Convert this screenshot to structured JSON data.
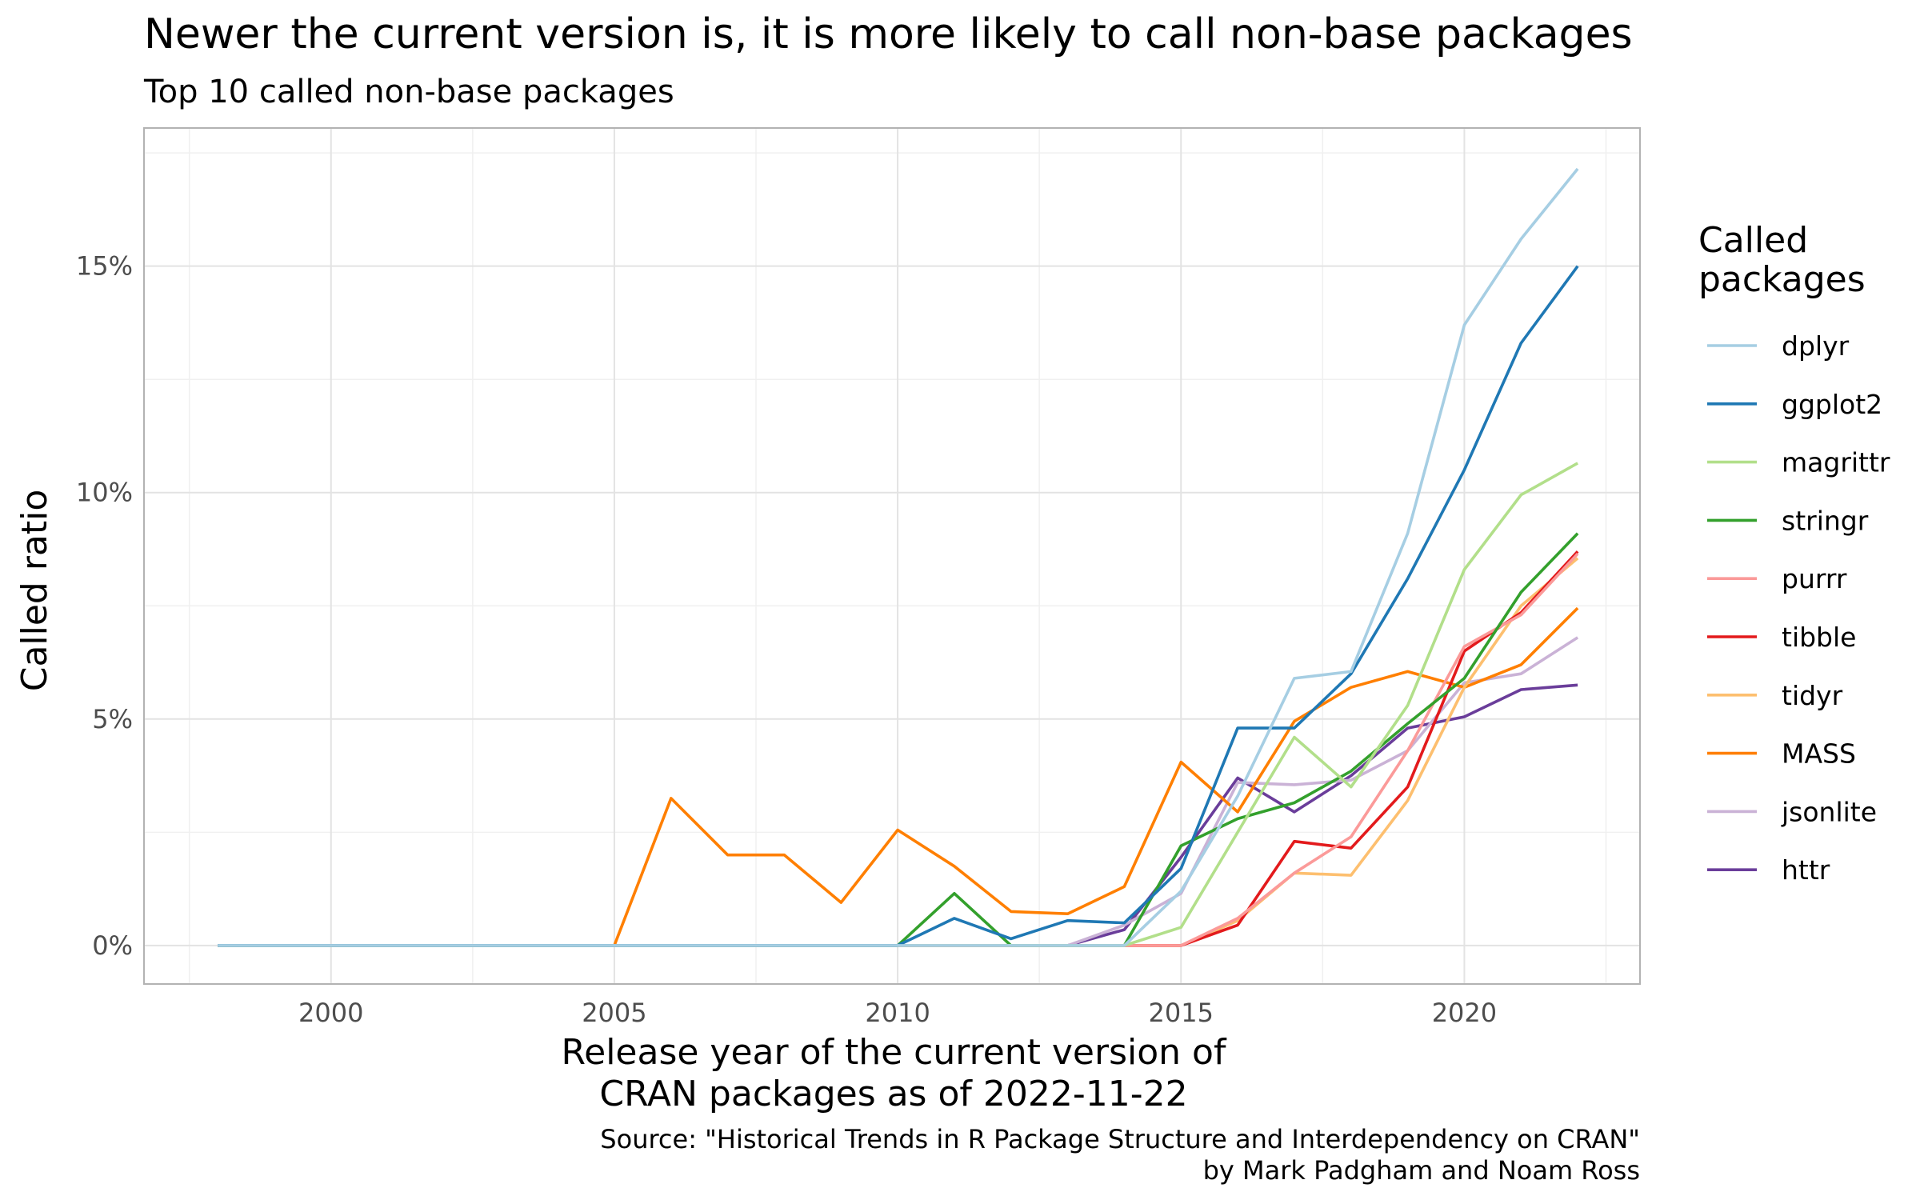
{
  "chart_data": {
    "type": "line",
    "title": "Newer the current version is, it is more likely to call non-base packages",
    "subtitle": "Top 10 called non-base packages",
    "xlabel": [
      "Release year of the current version of",
      "CRAN packages as of 2022-11-22"
    ],
    "ylabel": "Called ratio",
    "caption": [
      "Source: \"Historical Trends in R Package Structure and Interdependency on CRAN\"",
      "by Mark Padgham and Noam Ross"
    ],
    "legend_title": [
      "Called",
      "packages"
    ],
    "legend_position": "right",
    "grid": true,
    "xlim": [
      1996.7,
      2023.1
    ],
    "ylim": [
      -0.85,
      18.05
    ],
    "x_ticks": [
      2000,
      2005,
      2010,
      2015,
      2020
    ],
    "x_tick_labels": [
      "2000",
      "2005",
      "2010",
      "2015",
      "2020"
    ],
    "y_ticks": [
      0,
      5,
      10,
      15
    ],
    "y_tick_labels": [
      "0%",
      "5%",
      "10%",
      "15%"
    ],
    "x": [
      1998,
      1999,
      2000,
      2001,
      2002,
      2003,
      2004,
      2005,
      2006,
      2007,
      2008,
      2009,
      2010,
      2011,
      2012,
      2013,
      2014,
      2015,
      2016,
      2017,
      2018,
      2019,
      2020,
      2021,
      2022
    ],
    "series": [
      {
        "name": "dplyr",
        "color": "#A6CEE3",
        "values": [
          0,
          0,
          0,
          0,
          0,
          0,
          0,
          0,
          0,
          0,
          0,
          0,
          0,
          0,
          0,
          0,
          0,
          1.2,
          3.3,
          5.9,
          6.05,
          9.1,
          13.7,
          15.6,
          17.15
        ]
      },
      {
        "name": "ggplot2",
        "color": "#1F78B4",
        "values": [
          0,
          0,
          0,
          0,
          0,
          0,
          0,
          0,
          0,
          0,
          0,
          0,
          0,
          0.6,
          0.15,
          0.55,
          0.5,
          1.7,
          4.8,
          4.8,
          6.0,
          8.1,
          10.5,
          13.3,
          15.0
        ]
      },
      {
        "name": "magrittr",
        "color": "#B2DF8A",
        "values": [
          0,
          0,
          0,
          0,
          0,
          0,
          0,
          0,
          0,
          0,
          0,
          0,
          0,
          0,
          0,
          0,
          0,
          0.4,
          2.5,
          4.6,
          3.5,
          5.3,
          8.3,
          9.95,
          10.65
        ]
      },
      {
        "name": "stringr",
        "color": "#33A02C",
        "values": [
          0,
          0,
          0,
          0,
          0,
          0,
          0,
          0,
          0,
          0,
          0,
          0,
          0,
          1.15,
          0,
          0,
          0,
          2.2,
          2.8,
          3.15,
          3.85,
          4.9,
          5.9,
          7.8,
          9.1
        ]
      },
      {
        "name": "purrr",
        "color": "#FB9A99",
        "values": [
          0,
          0,
          0,
          0,
          0,
          0,
          0,
          0,
          0,
          0,
          0,
          0,
          0,
          0,
          0,
          0,
          0,
          0,
          0.6,
          1.6,
          2.4,
          4.3,
          6.6,
          7.3,
          8.65
        ]
      },
      {
        "name": "tibble",
        "color": "#E31A1C",
        "values": [
          0,
          0,
          0,
          0,
          0,
          0,
          0,
          0,
          0,
          0,
          0,
          0,
          0,
          0,
          0,
          0,
          0,
          0,
          0.45,
          2.3,
          2.15,
          3.5,
          6.5,
          7.35,
          8.7
        ]
      },
      {
        "name": "tidyr",
        "color": "#FDBF6F",
        "values": [
          0,
          0,
          0,
          0,
          0,
          0,
          0,
          0,
          0,
          0,
          0,
          0,
          0,
          0,
          0,
          0,
          0,
          0,
          0.55,
          1.6,
          1.55,
          3.2,
          5.7,
          7.5,
          8.55
        ]
      },
      {
        "name": "MASS",
        "color": "#FF7F00",
        "values": [
          0,
          0,
          0,
          0,
          0,
          0,
          0,
          0,
          3.25,
          2.0,
          2.0,
          0.95,
          2.55,
          1.75,
          0.75,
          0.7,
          1.3,
          4.05,
          2.95,
          4.95,
          5.7,
          6.05,
          5.7,
          6.2,
          7.45
        ]
      },
      {
        "name": "jsonlite",
        "color": "#CAB2D6",
        "values": [
          0,
          0,
          0,
          0,
          0,
          0,
          0,
          0,
          0,
          0,
          0,
          0,
          0,
          0,
          0,
          0,
          0.45,
          1.15,
          3.6,
          3.55,
          3.65,
          4.3,
          5.8,
          6.0,
          6.8
        ]
      },
      {
        "name": "httr",
        "color": "#6A3D9A",
        "values": [
          0,
          0,
          0,
          0,
          0,
          0,
          0,
          0,
          0,
          0,
          0,
          0,
          0,
          0,
          0,
          0,
          0.35,
          1.95,
          3.7,
          2.95,
          3.75,
          4.8,
          5.05,
          5.65,
          5.75
        ]
      }
    ]
  }
}
